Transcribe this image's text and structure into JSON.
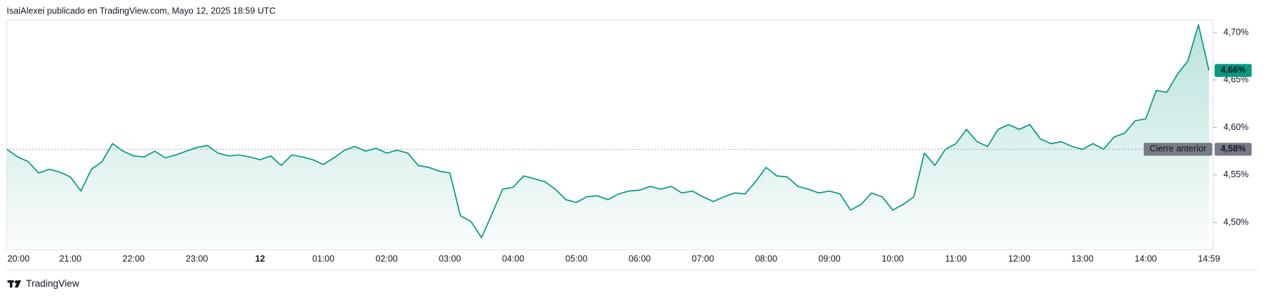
{
  "header": {
    "text": "IsaiAlexei publicado en TradingView.com, Mayo 12, 2025 18:59 UTC"
  },
  "footer": {
    "brand": "TradingView"
  },
  "chart_data": {
    "type": "area-line",
    "color": "#089981",
    "grid": false,
    "categories": [
      "20:00",
      null,
      null,
      null,
      null,
      null,
      "21:00",
      null,
      null,
      null,
      null,
      null,
      "22:00",
      null,
      null,
      null,
      null,
      null,
      "23:00",
      null,
      null,
      null,
      null,
      null,
      "12",
      null,
      null,
      null,
      null,
      null,
      "01:00",
      null,
      null,
      null,
      null,
      null,
      "02:00",
      null,
      null,
      null,
      null,
      null,
      "03:00",
      null,
      null,
      null,
      null,
      null,
      "04:00",
      null,
      null,
      null,
      null,
      null,
      "05:00",
      null,
      null,
      null,
      null,
      null,
      "06:00",
      null,
      null,
      null,
      null,
      null,
      "07:00",
      null,
      null,
      null,
      null,
      null,
      "08:00",
      null,
      null,
      null,
      null,
      null,
      "09:00",
      null,
      null,
      null,
      null,
      null,
      "10:00",
      null,
      null,
      null,
      null,
      null,
      "11:00",
      null,
      null,
      null,
      null,
      null,
      "12:00",
      null,
      null,
      null,
      null,
      null,
      "13:00",
      null,
      null,
      null,
      null,
      null,
      "14:00",
      null,
      null,
      null,
      null,
      null,
      "14:59"
    ],
    "values": [
      4.577,
      4.569,
      4.564,
      4.552,
      4.556,
      4.553,
      4.548,
      4.533,
      4.556,
      4.564,
      4.583,
      4.575,
      4.57,
      4.569,
      4.575,
      4.568,
      4.571,
      4.575,
      4.579,
      4.581,
      4.573,
      4.57,
      4.571,
      4.569,
      4.566,
      4.57,
      4.56,
      4.571,
      4.569,
      4.566,
      4.561,
      4.568,
      4.576,
      4.58,
      4.575,
      4.578,
      4.573,
      4.576,
      4.573,
      4.56,
      4.558,
      4.554,
      4.552,
      4.507,
      4.501,
      4.484,
      4.509,
      4.535,
      4.537,
      4.549,
      4.546,
      4.543,
      4.535,
      4.524,
      4.521,
      4.527,
      4.528,
      4.524,
      4.53,
      4.533,
      4.534,
      4.538,
      4.535,
      4.538,
      4.531,
      4.533,
      4.527,
      4.522,
      4.527,
      4.531,
      4.53,
      4.543,
      4.558,
      4.549,
      4.548,
      4.538,
      4.535,
      4.531,
      4.533,
      4.53,
      4.513,
      4.519,
      4.531,
      4.527,
      4.513,
      4.519,
      4.527,
      4.573,
      4.56,
      4.577,
      4.583,
      4.598,
      4.585,
      4.58,
      4.598,
      4.603,
      4.598,
      4.603,
      4.588,
      4.583,
      4.585,
      4.58,
      4.577,
      4.583,
      4.577,
      4.59,
      4.594,
      4.607,
      4.609,
      4.639,
      4.637,
      4.656,
      4.67,
      4.708,
      4.66
    ],
    "last_label": "4,66%",
    "previous_close": {
      "name": "Cierre anterior",
      "value": 4.577,
      "label": "4,58%"
    },
    "ylim": [
      4.473,
      4.713
    ],
    "yticks": [
      {
        "value": 4.5,
        "label": "4,50%"
      },
      {
        "value": 4.55,
        "label": "4,55%"
      },
      {
        "value": 4.6,
        "label": "4,60%"
      },
      {
        "value": 4.65,
        "label": "4,65%"
      },
      {
        "value": 4.7,
        "label": "4,70%"
      }
    ]
  }
}
